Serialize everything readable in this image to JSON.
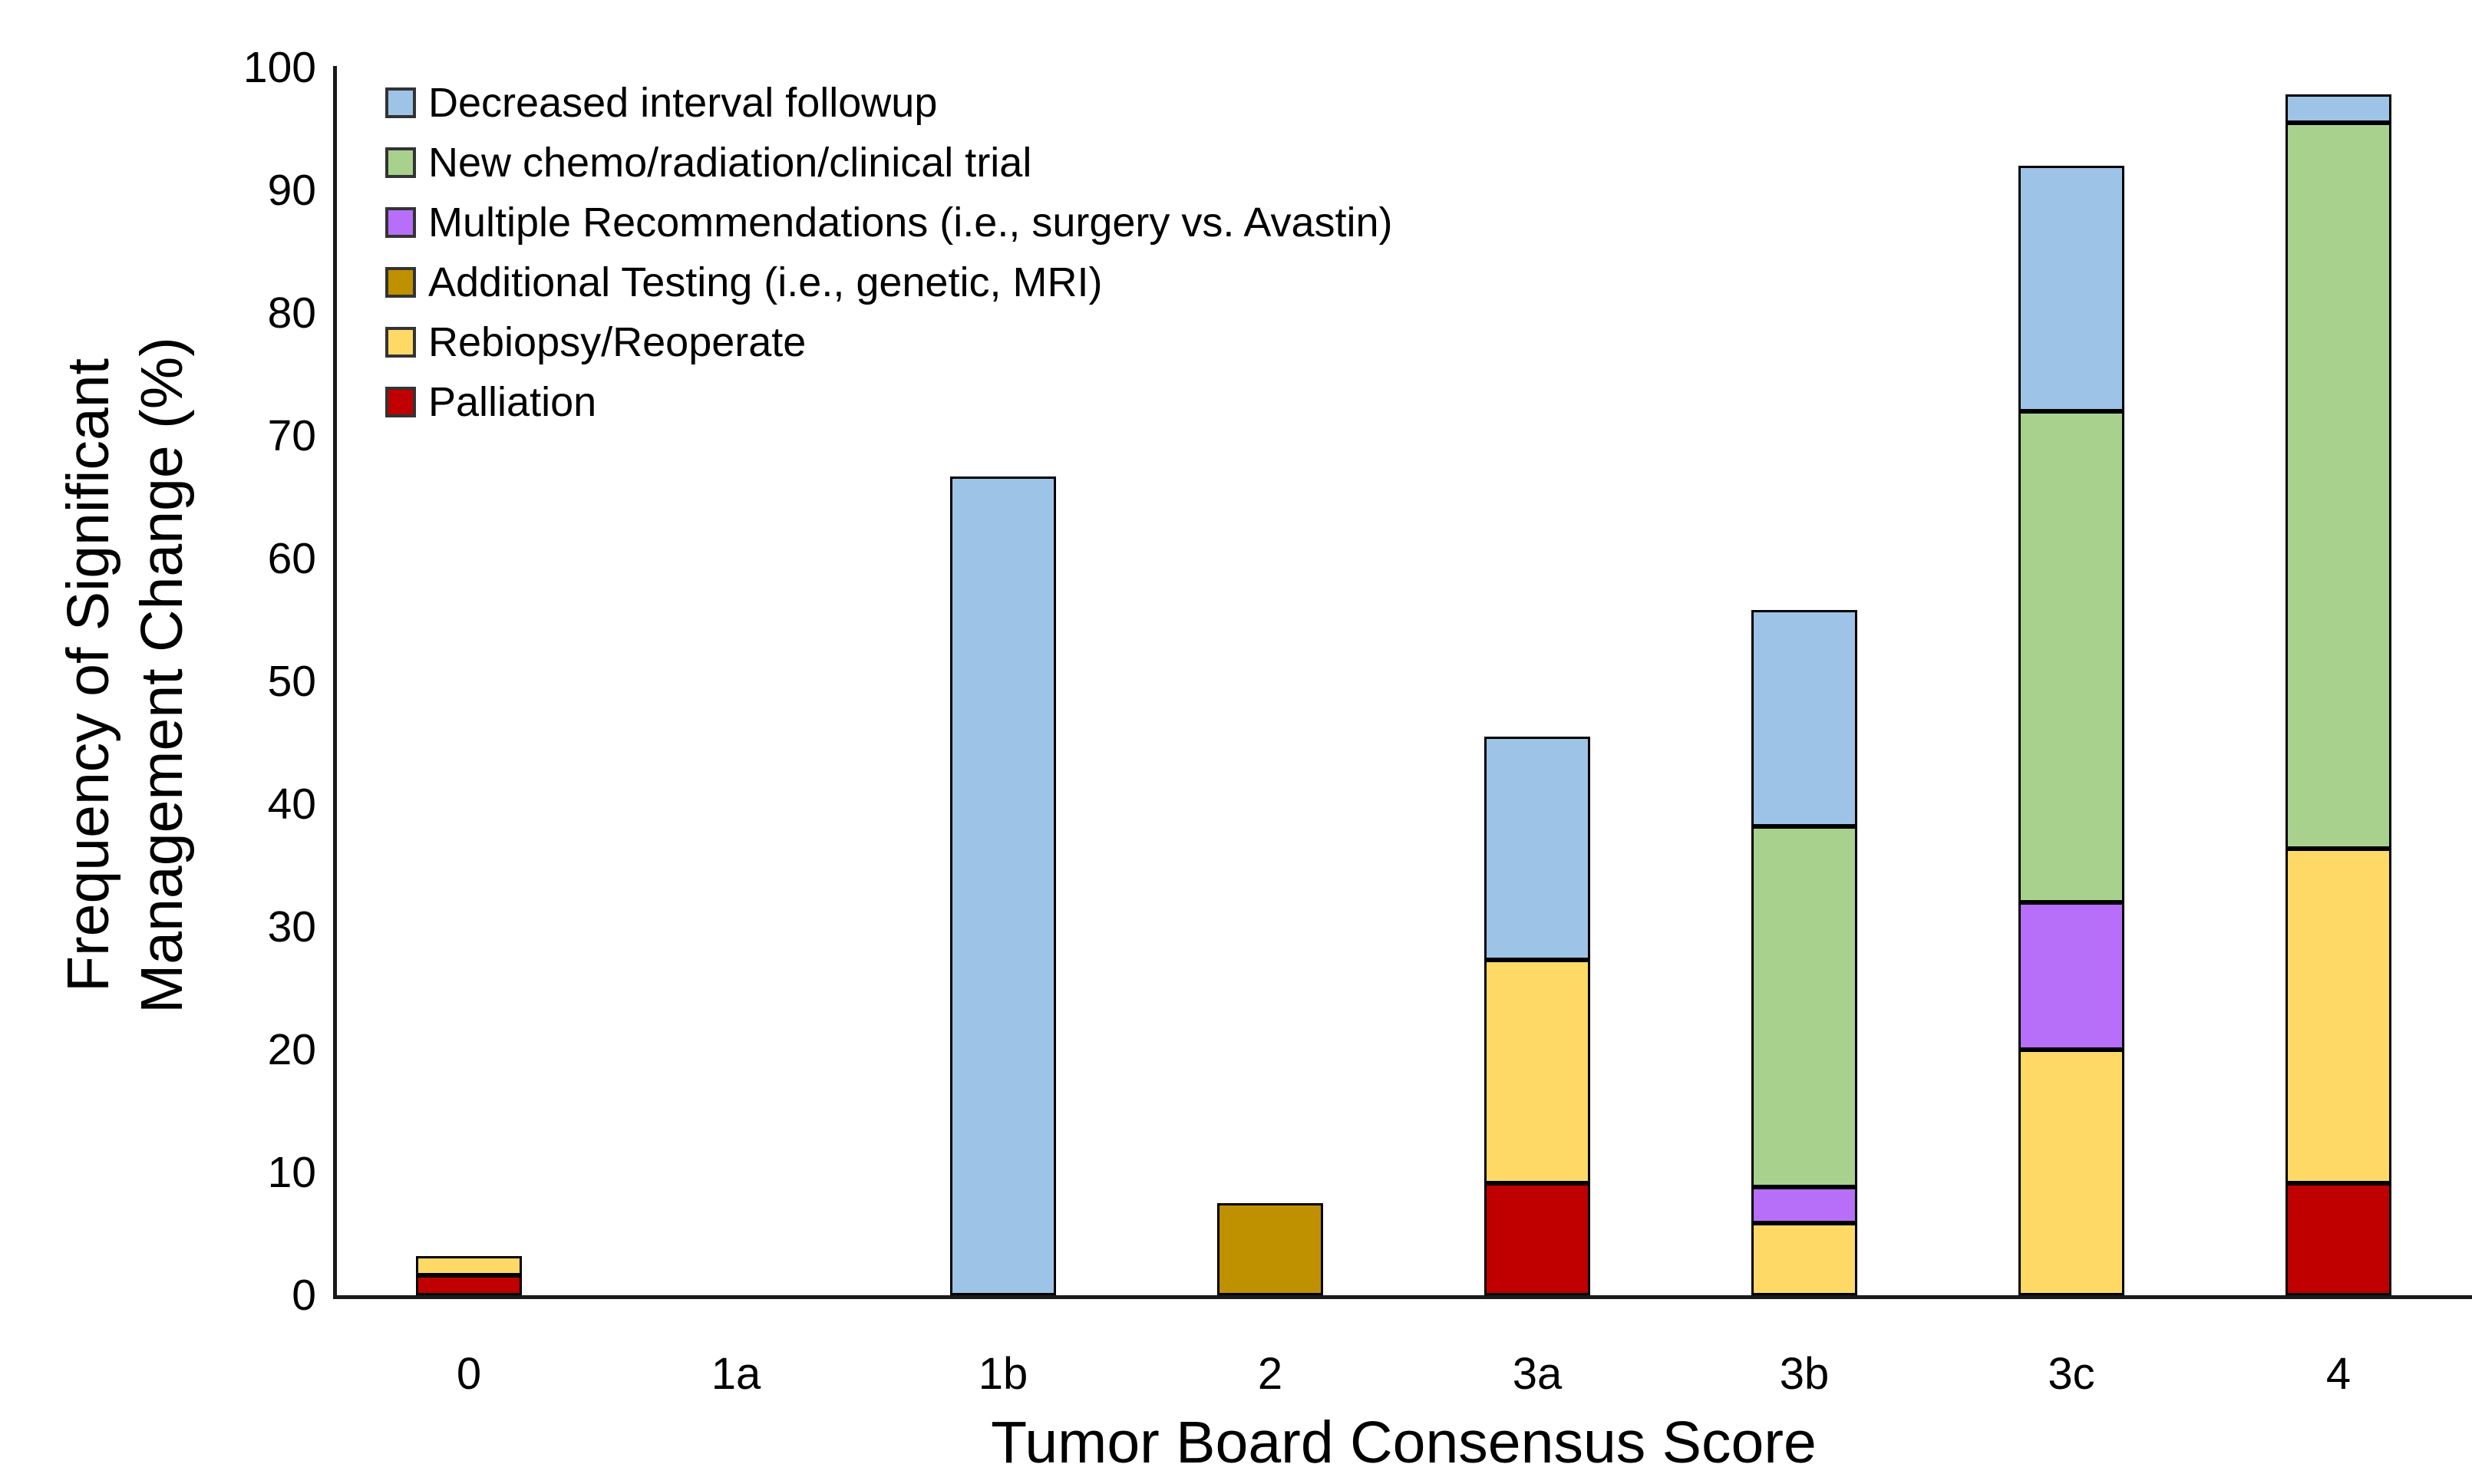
{
  "figure": {
    "x_axis_title": "Tumor Board Consensus Score",
    "y_axis_title_line1": "Frequency of Significant",
    "y_axis_title_line2": "Management Change (%)"
  },
  "chart_data": {
    "type": "bar",
    "stacked": true,
    "grid": false,
    "legend_position": "upper-left-inside",
    "title": "",
    "xlabel": "Tumor Board Consensus Score",
    "ylabel": "Frequency of Significant Management Change (%)",
    "ylim": [
      0,
      100
    ],
    "ytick_step": 10,
    "categories": [
      "0",
      "1a",
      "1b",
      "2",
      "3a",
      "3b",
      "3c",
      "4"
    ],
    "series_stack_order": "bottom_to_top",
    "series": [
      {
        "name": "Palliation",
        "color": "#C00000",
        "values": [
          1.6,
          0,
          0,
          0,
          9.1,
          0,
          0,
          9.1
        ]
      },
      {
        "name": "Rebiopsy/Reoperate",
        "color": "#FFD966",
        "values": [
          1.6,
          0,
          0,
          0,
          18.2,
          5.9,
          20,
          27.3
        ]
      },
      {
        "name": "Additional Testing (i.e., genetic, MRI)",
        "color": "#BF9000",
        "values": [
          0,
          0,
          0,
          7.5,
          0,
          0,
          0,
          0
        ]
      },
      {
        "name": "Multiple Recommendations (i.e., surgery vs. Avastin)",
        "color": "#B76EF8",
        "values": [
          0,
          0,
          0,
          0,
          0,
          2.9,
          12,
          0
        ]
      },
      {
        "name": "New chemo/radiation/clinical trial",
        "color": "#A9D18E",
        "values": [
          0,
          0,
          0,
          0,
          0,
          29.4,
          40,
          59.1
        ]
      },
      {
        "name": "Decreased interval followup",
        "color": "#9DC3E6",
        "values": [
          0,
          0,
          66.7,
          0,
          18.2,
          17.6,
          20,
          2.3
        ]
      }
    ],
    "bar_totals_percent": [
      3.2,
      0,
      66.7,
      7.5,
      45.5,
      55.8,
      92.0,
      97.8
    ],
    "legend_order_top_to_bottom": [
      "Decreased interval followup",
      "New chemo/radiation/clinical trial",
      "Multiple Recommendations (i.e., surgery vs. Avastin)",
      "Additional Testing (i.e., genetic, MRI)",
      "Rebiopsy/Reoperate",
      "Palliation"
    ]
  }
}
